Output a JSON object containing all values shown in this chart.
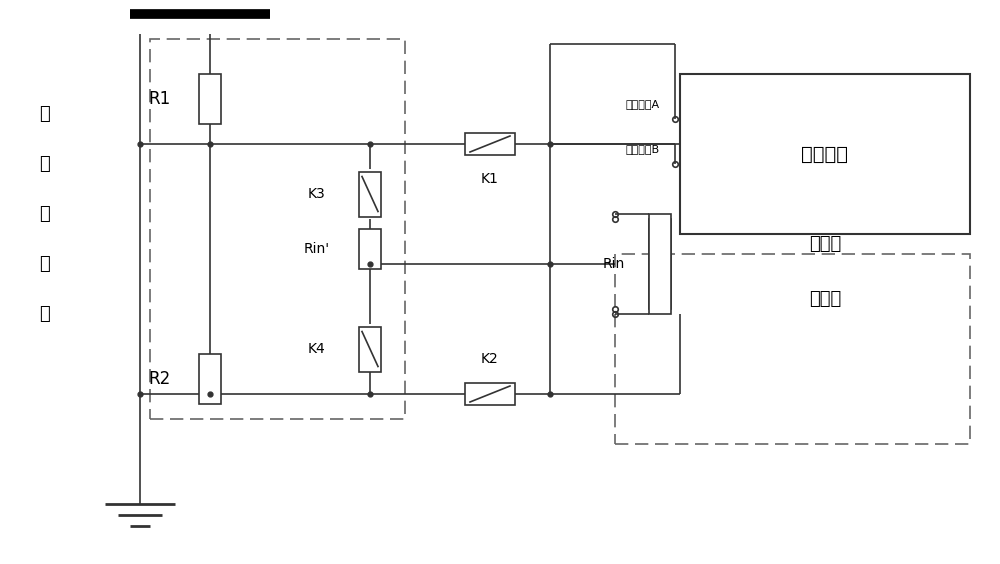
{
  "bg_color": "#ffffff",
  "line_color": "#333333",
  "dashed_color": "#666666",
  "labels": {
    "voltage_transformer": [
      "电",
      "压",
      "互",
      "感",
      "器"
    ],
    "R1": "R1",
    "R2": "R2",
    "K1": "K1",
    "K2": "K2",
    "K3": "K3",
    "K4": "K4",
    "Rin_prime": "Rin'",
    "Rin": "Rin",
    "control_module": "控制模块",
    "voltage_module_line1": "电压采",
    "voltage_module_line2": "集模块",
    "signal_A": "控制信号A",
    "signal_B": "控制信号B"
  },
  "figsize": [
    10.0,
    5.64
  ],
  "dpi": 100
}
